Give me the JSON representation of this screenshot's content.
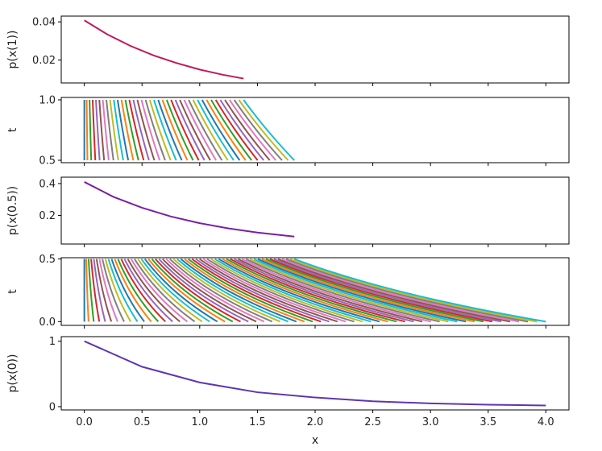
{
  "chart_data": [
    {
      "type": "line",
      "ylabel": "p(x(1))",
      "ylim": [
        0.008,
        0.043
      ],
      "yticks": [
        0.02,
        0.04
      ],
      "ytick_labels": [
        "0.02",
        "0.04"
      ],
      "series": [
        {
          "color": "#c2185b",
          "x": [
            0.0,
            0.2,
            0.4,
            0.6,
            0.8,
            1.0,
            1.2,
            1.38
          ],
          "y": [
            0.0408,
            0.0334,
            0.0274,
            0.0224,
            0.0184,
            0.015,
            0.0123,
            0.0103
          ]
        }
      ]
    },
    {
      "type": "line",
      "ylabel": "t",
      "ylim": [
        0.48,
        1.02
      ],
      "yticks": [
        0.5,
        1.0
      ],
      "ytick_labels": [
        "0.5",
        "1.0"
      ],
      "trajectories": {
        "t_start": 0.5,
        "t_end": 1.0,
        "x_start_min": 0.0,
        "x_start_max": 1.82,
        "x_end_max": 1.38,
        "count": 40
      },
      "boundary_color": "#17becf"
    },
    {
      "type": "line",
      "ylabel": "p(x(0.5))",
      "ylim": [
        0.02,
        0.44
      ],
      "yticks": [
        0.2,
        0.4
      ],
      "ytick_labels": [
        "0.2",
        "0.4"
      ],
      "series": [
        {
          "color": "#7b1fa2",
          "x": [
            0.0,
            0.25,
            0.5,
            0.75,
            1.0,
            1.25,
            1.5,
            1.82
          ],
          "y": [
            0.41,
            0.317,
            0.248,
            0.193,
            0.151,
            0.118,
            0.092,
            0.067
          ]
        }
      ]
    },
    {
      "type": "line",
      "ylabel": "t",
      "ylim": [
        -0.03,
        0.51
      ],
      "yticks": [
        0.0,
        0.5
      ],
      "ytick_labels": [
        "0.0",
        "0.5"
      ],
      "trajectories": {
        "t_start": 0.0,
        "t_end": 0.5,
        "x_start_min": 0.0,
        "x_start_max": 4.0,
        "x_end_max": 1.82,
        "count": 60
      },
      "boundary_color": "#17becf"
    },
    {
      "type": "line",
      "ylabel": "p(x(0))",
      "xlabel": "x",
      "ylim": [
        -0.05,
        1.07
      ],
      "yticks": [
        0,
        1
      ],
      "ytick_labels": [
        "0",
        "1"
      ],
      "series": [
        {
          "color": "#5e35b1",
          "x": [
            0.0,
            0.5,
            1.0,
            1.5,
            2.0,
            2.5,
            3.0,
            3.5,
            4.0
          ],
          "y": [
            1.0,
            0.61,
            0.37,
            0.22,
            0.14,
            0.082,
            0.05,
            0.03,
            0.018
          ]
        }
      ]
    }
  ],
  "x_axis": {
    "xlim": [
      -0.2,
      4.2
    ],
    "ticks": [
      0.0,
      0.5,
      1.0,
      1.5,
      2.0,
      2.5,
      3.0,
      3.5,
      4.0
    ],
    "tick_labels": [
      "0.0",
      "0.5",
      "1.0",
      "1.5",
      "2.0",
      "2.5",
      "3.0",
      "3.5",
      "4.0"
    ],
    "label": "x"
  },
  "palette": [
    "#1f77b4",
    "#ff7f0e",
    "#2ca02c",
    "#d62728",
    "#9467bd",
    "#8c564b",
    "#e377c2",
    "#7f7f7f",
    "#bcbd22",
    "#17becf"
  ]
}
